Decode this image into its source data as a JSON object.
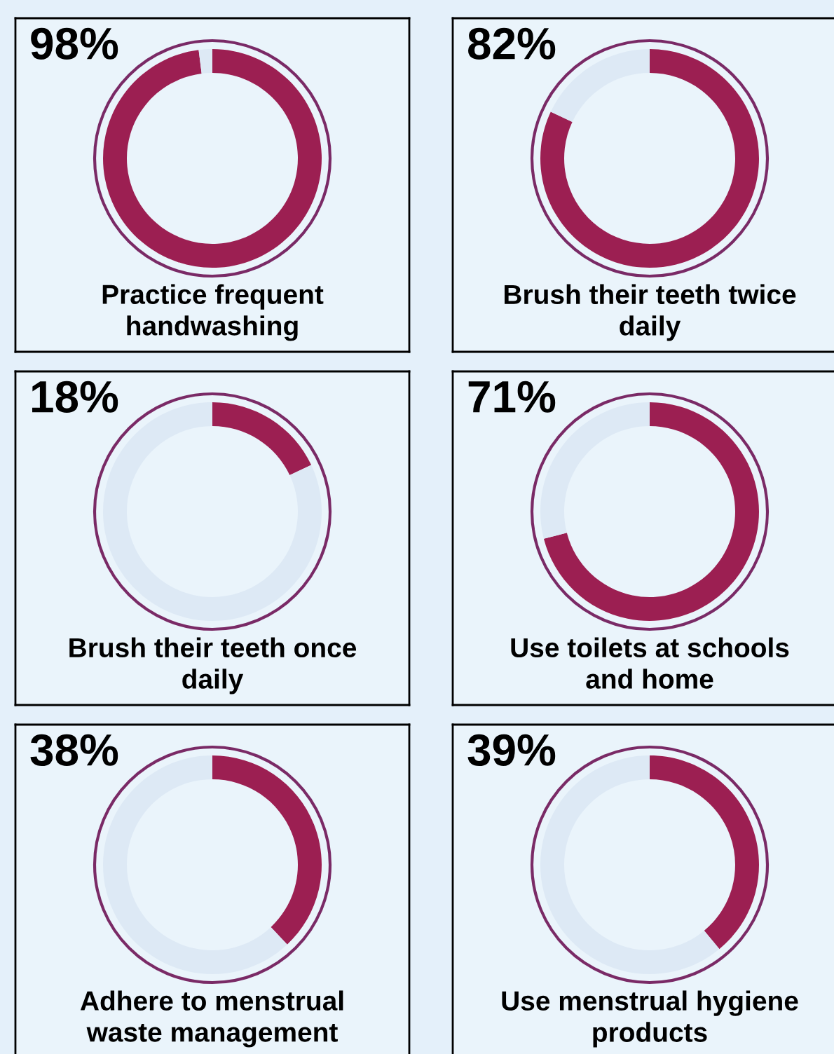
{
  "chart_data": [
    {
      "type": "donut",
      "title": "Practice frequent handwashing",
      "annotations": [
        "98%"
      ],
      "categories": [
        null,
        null
      ],
      "values": [
        98,
        2
      ],
      "colors": [
        "#9c1f52",
        "#dde9f5"
      ]
    },
    {
      "type": "donut",
      "title": "Brush their teeth twice daily",
      "annotations": [
        "82%"
      ],
      "categories": [
        null,
        null
      ],
      "values": [
        82,
        18
      ],
      "colors": [
        "#9c1f52",
        "#dde9f5"
      ]
    },
    {
      "type": "donut",
      "title": "Brush their teeth once daily",
      "annotations": [
        "18%"
      ],
      "categories": [
        null,
        null
      ],
      "values": [
        18,
        82
      ],
      "colors": [
        "#9c1f52",
        "#dde9f5"
      ]
    },
    {
      "type": "donut",
      "title": "Use toilets at schools and home",
      "annotations": [
        "71%"
      ],
      "categories": [
        null,
        null
      ],
      "values": [
        71,
        29
      ],
      "colors": [
        "#9c1f52",
        "#dde9f5"
      ]
    },
    {
      "type": "donut",
      "title": "Adhere to menstrual waste management",
      "annotations": [
        "38%"
      ],
      "categories": [
        null,
        null
      ],
      "values": [
        38,
        62
      ],
      "colors": [
        "#9c1f52",
        "#dde9f5"
      ]
    },
    {
      "type": "donut",
      "title": "Use menstrual hygiene products",
      "annotations": [
        "39%"
      ],
      "categories": [
        null,
        null
      ],
      "values": [
        39,
        61
      ],
      "colors": [
        "#9c1f52",
        "#dde9f5"
      ]
    }
  ]
}
